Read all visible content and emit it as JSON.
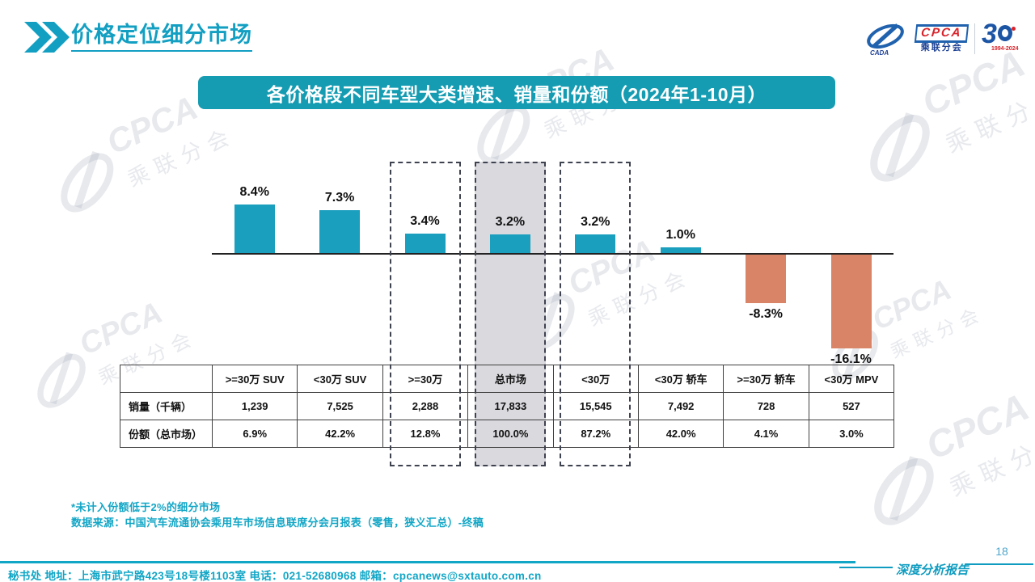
{
  "slide_title": "价格定位细分市场",
  "logo": {
    "emblem_caption": "CADA",
    "cpca": "CPCA",
    "cpca_sub": "乘联分会",
    "anniversary_number": "3",
    "anniversary_years": "1994-2024"
  },
  "banner_title": "各价格段不同车型大类增速、销量和份额（2024年1-10月）",
  "chart_data": {
    "type": "bar",
    "title": "各价格段不同车型大类增速、销量和份额（2024年1-10月）",
    "categories": [
      ">=30万 SUV",
      "<30万 SUV",
      ">=30万",
      "总市场",
      "<30万",
      "<30万 轿车",
      ">=30万 轿车",
      "<30万 MPV"
    ],
    "values": [
      8.4,
      7.3,
      3.4,
      3.2,
      3.2,
      1.0,
      -8.3,
      -16.1
    ],
    "value_labels": [
      "8.4%",
      "7.3%",
      "3.4%",
      "3.2%",
      "3.2%",
      "1.0%",
      "-8.3%",
      "-16.1%"
    ],
    "ylim": [
      -18,
      10
    ],
    "grid": false,
    "legend": "none",
    "positive_color": "#1b9fbe",
    "negative_color": "#d98466",
    "highlight_dashed_categories": [
      ">=30万",
      "<30万"
    ],
    "highlight_filled_category": "总市场",
    "highlight_fill_color": "#d9d9de"
  },
  "table": {
    "corner_label": "",
    "column_headers": [
      ">=30万 SUV",
      "<30万 SUV",
      ">=30万",
      "总市场",
      "<30万",
      "<30万 轿车",
      ">=30万 轿车",
      "<30万 MPV"
    ],
    "rows": [
      {
        "label": "销量（千辆）",
        "values": [
          "1,239",
          "7,525",
          "2,288",
          "17,833",
          "15,545",
          "7,492",
          "728",
          "527"
        ]
      },
      {
        "label": "份额（总市场）",
        "values": [
          "6.9%",
          "42.2%",
          "12.8%",
          "100.0%",
          "87.2%",
          "42.0%",
          "4.1%",
          "3.0%"
        ]
      }
    ]
  },
  "notes": {
    "line1": "*未计入份额低于2%的细分市场",
    "line2": "数据来源：中国汽车流通协会乘用车市场信息联席分会月报表（零售，狭义汇总）-终稿"
  },
  "footer": {
    "contact": "秘书处  地址：上海市武宁路423号18号楼1103室 电话：021-52680968   邮箱：cpcanews@sxtauto.com.cn",
    "report_label": "深度分析报告",
    "page_number": "18"
  },
  "watermark": {
    "line1": "CPCA",
    "line2": "乘联分会"
  }
}
